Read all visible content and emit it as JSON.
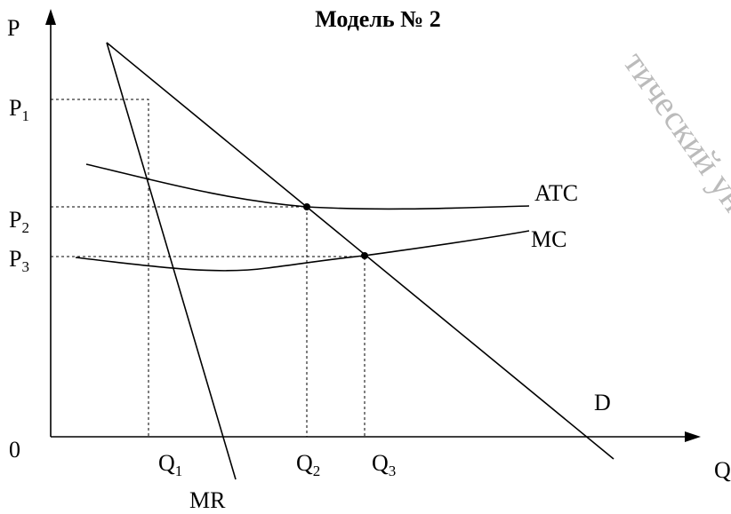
{
  "title": "Модель № 2",
  "axes": {
    "y": "P",
    "x": "Q",
    "origin": "0"
  },
  "price_levels": [
    {
      "base": "P",
      "sub": "1"
    },
    {
      "base": "P",
      "sub": "2"
    },
    {
      "base": "P",
      "sub": "3"
    }
  ],
  "quantities": [
    {
      "base": "Q",
      "sub": "1"
    },
    {
      "base": "Q",
      "sub": "2"
    },
    {
      "base": "Q",
      "sub": "3"
    }
  ],
  "curves": {
    "atc": "ATC",
    "mc": "MC",
    "d": "D",
    "mr": "MR"
  },
  "watermark": "тический ун"
}
